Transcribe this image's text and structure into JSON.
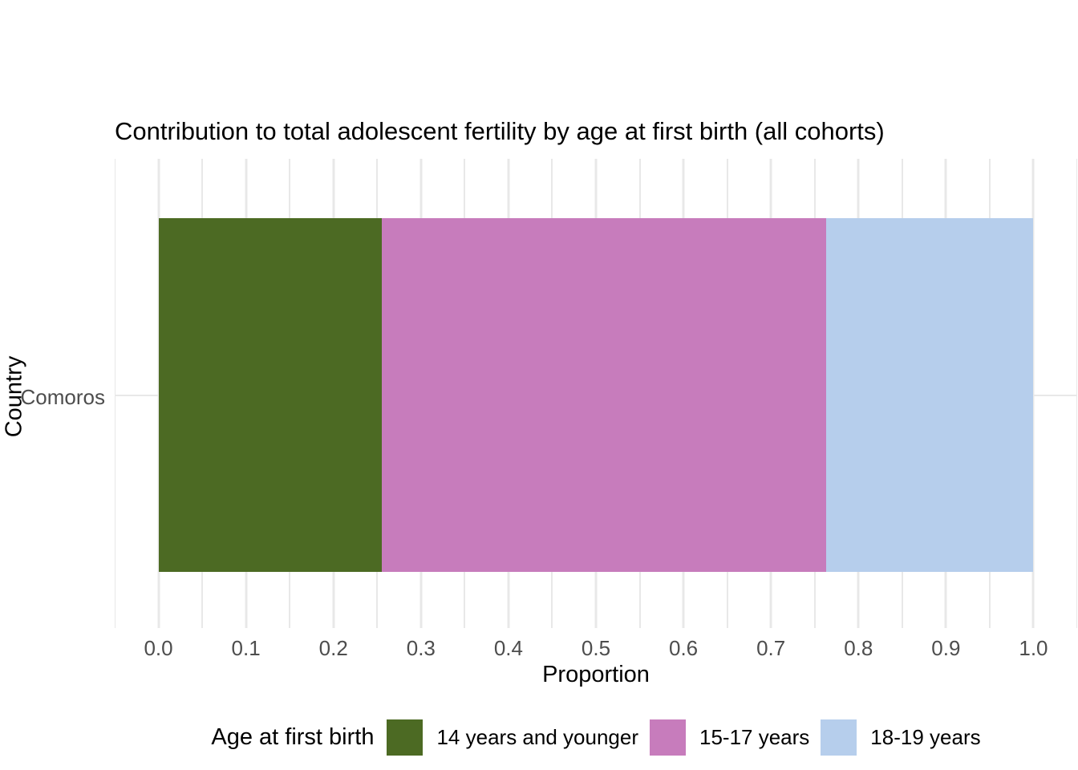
{
  "chart_data": {
    "type": "bar",
    "orientation": "horizontal",
    "stacked": true,
    "title": "Contribution to total adolescent fertility by age at first birth (all cohorts)",
    "xlabel": "Proportion",
    "ylabel": "Country",
    "categories": [
      "Comoros"
    ],
    "series": [
      {
        "name": "14 years and younger",
        "color": "#4c6a23",
        "values": [
          0.255
        ]
      },
      {
        "name": "15-17 years",
        "color": "#c77cbc",
        "values": [
          0.508
        ]
      },
      {
        "name": "18-19 years",
        "color": "#b6ceec",
        "values": [
          0.237
        ]
      }
    ],
    "xlim": [
      -0.05,
      1.05
    ],
    "x_ticks": [
      "0.0",
      "0.1",
      "0.2",
      "0.3",
      "0.4",
      "0.5",
      "0.6",
      "0.7",
      "0.8",
      "0.9",
      "1.0"
    ],
    "x_tick_values": [
      0.0,
      0.1,
      0.2,
      0.3,
      0.4,
      0.5,
      0.6,
      0.7,
      0.8,
      0.9,
      1.0
    ],
    "x_minor_values": [
      -0.05,
      0.05,
      0.15,
      0.25,
      0.35,
      0.45,
      0.55,
      0.65,
      0.75,
      0.85,
      0.95,
      1.05
    ],
    "grid": true,
    "grid_color": "#e8e8e8",
    "background": "#ffffff",
    "tick_text_color": "#4d4d4d",
    "legend_title": "Age at first birth",
    "legend_position": "bottom"
  }
}
